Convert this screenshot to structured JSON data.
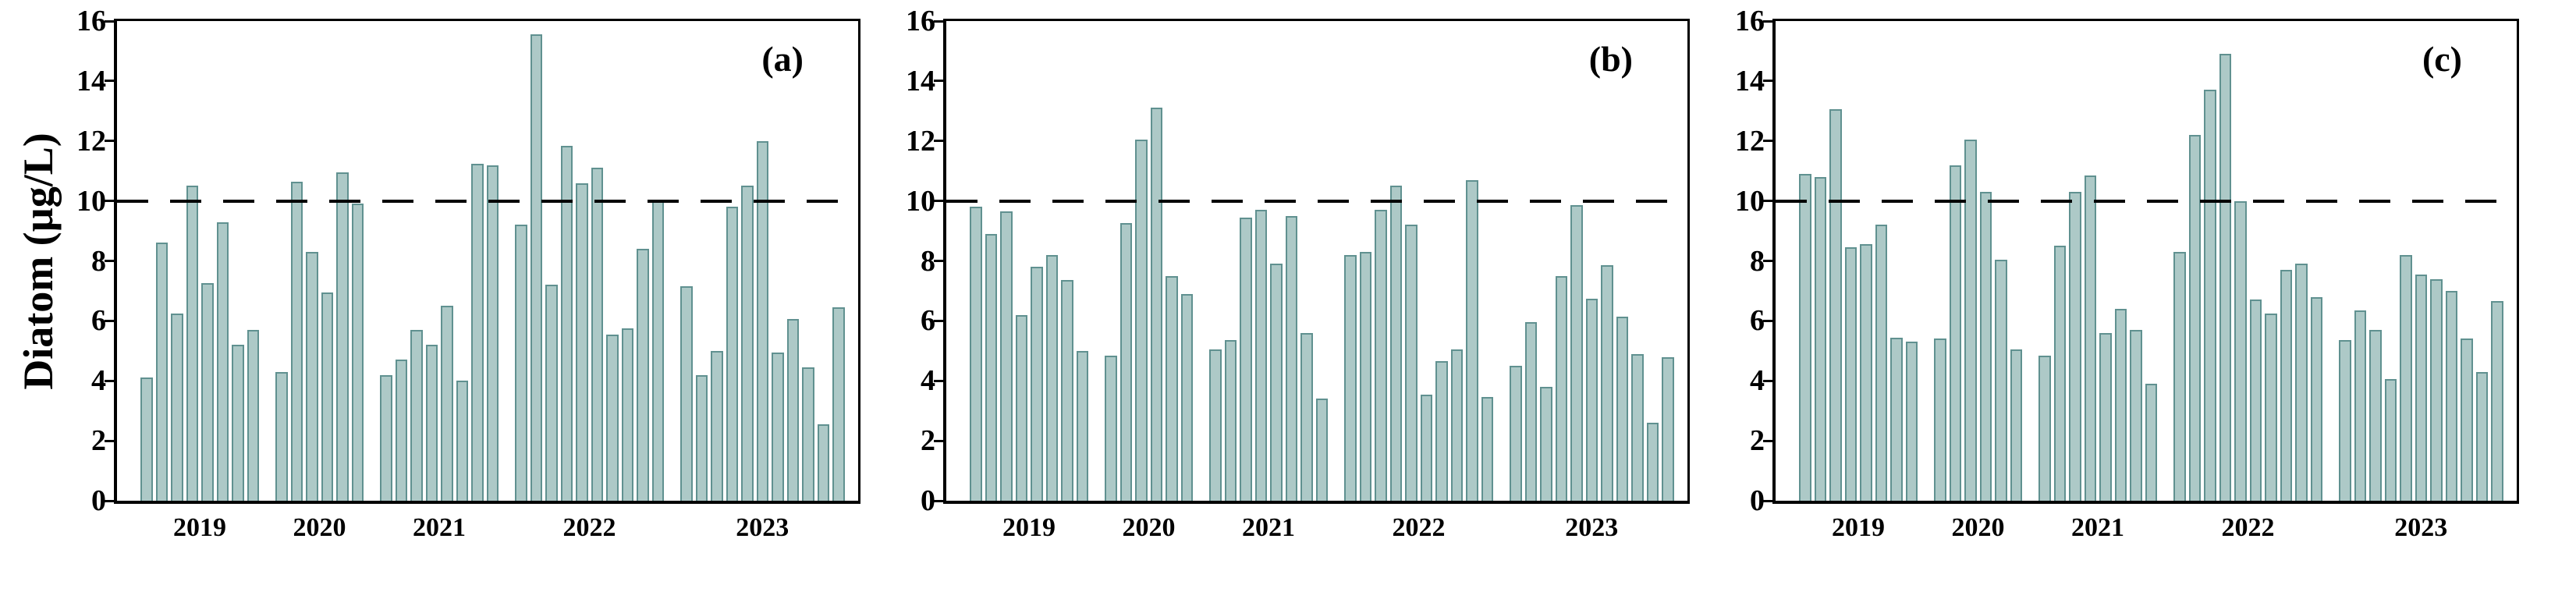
{
  "figure": {
    "y_axis_title": "Diatom (µg/L)",
    "background_color": "#ffffff",
    "axis_color": "#000000"
  },
  "colors": {
    "bar_fill": "#adc9c7",
    "bar_border": "#609190",
    "threshold_line": "#000000"
  },
  "chart_data": [
    {
      "type": "bar",
      "panel_label": "(a)",
      "ylabel": "Diatom (µg/L)",
      "ylim": [
        0,
        16
      ],
      "yticks": [
        0,
        2,
        4,
        6,
        8,
        10,
        12,
        14,
        16
      ],
      "threshold_value": 10,
      "legend": "none",
      "grid": "off",
      "groups": [
        {
          "year": "2019",
          "values": [
            4.1,
            8.6,
            6.25,
            10.5,
            7.25,
            9.3,
            5.2,
            5.7
          ]
        },
        {
          "year": "2020",
          "values": [
            4.3,
            10.65,
            8.3,
            6.95,
            10.95,
            9.9
          ]
        },
        {
          "year": "2021",
          "values": [
            4.2,
            4.7,
            5.7,
            5.2,
            6.5,
            4.0,
            11.25,
            11.2
          ]
        },
        {
          "year": "2022",
          "values": [
            9.2,
            15.55,
            7.2,
            11.85,
            10.6,
            11.1,
            5.55,
            5.75,
            8.4,
            10.0
          ]
        },
        {
          "year": "2023",
          "values": [
            7.15,
            4.2,
            5.0,
            9.8,
            10.5,
            12.0,
            4.95,
            6.05,
            4.45,
            2.55,
            6.45
          ]
        }
      ]
    },
    {
      "type": "bar",
      "panel_label": "(b)",
      "ylabel": "",
      "ylim": [
        0,
        16
      ],
      "yticks": [
        0,
        2,
        4,
        6,
        8,
        10,
        12,
        14,
        16
      ],
      "threshold_value": 10,
      "legend": "none",
      "grid": "off",
      "groups": [
        {
          "year": "2019",
          "values": [
            9.8,
            8.9,
            9.65,
            6.2,
            7.8,
            8.2,
            7.35,
            5.0
          ]
        },
        {
          "year": "2020",
          "values": [
            4.85,
            9.25,
            12.05,
            13.1,
            7.5,
            6.9
          ]
        },
        {
          "year": "2021",
          "values": [
            5.05,
            5.35,
            9.45,
            9.7,
            7.9,
            9.5,
            5.6,
            3.4
          ]
        },
        {
          "year": "2022",
          "values": [
            8.2,
            8.3,
            9.7,
            10.5,
            9.2,
            3.55,
            4.65,
            5.05,
            10.7,
            3.45
          ]
        },
        {
          "year": "2023",
          "values": [
            4.5,
            5.95,
            3.8,
            7.5,
            9.85,
            6.75,
            7.85,
            6.15,
            4.9,
            2.6,
            4.8
          ]
        }
      ]
    },
    {
      "type": "bar",
      "panel_label": "(c)",
      "ylabel": "",
      "ylim": [
        0,
        16
      ],
      "yticks": [
        0,
        2,
        4,
        6,
        8,
        10,
        12,
        14,
        16
      ],
      "threshold_value": 10,
      "legend": "none",
      "grid": "off",
      "groups": [
        {
          "year": "2019",
          "values": [
            10.9,
            10.8,
            13.05,
            8.45,
            8.55,
            9.2,
            5.45,
            5.3
          ]
        },
        {
          "year": "2020",
          "values": [
            5.4,
            11.2,
            12.05,
            10.3,
            8.05,
            5.05
          ]
        },
        {
          "year": "2021",
          "values": [
            4.85,
            8.5,
            10.3,
            10.85,
            5.6,
            6.4,
            5.7,
            3.9
          ]
        },
        {
          "year": "2022",
          "values": [
            8.3,
            12.2,
            13.7,
            14.9,
            10.0,
            6.7,
            6.25,
            7.7,
            7.9,
            6.8
          ]
        },
        {
          "year": "2023",
          "values": [
            5.35,
            6.35,
            5.7,
            4.05,
            8.2,
            7.55,
            7.4,
            7.0,
            5.4,
            4.3,
            6.65
          ]
        }
      ]
    }
  ]
}
